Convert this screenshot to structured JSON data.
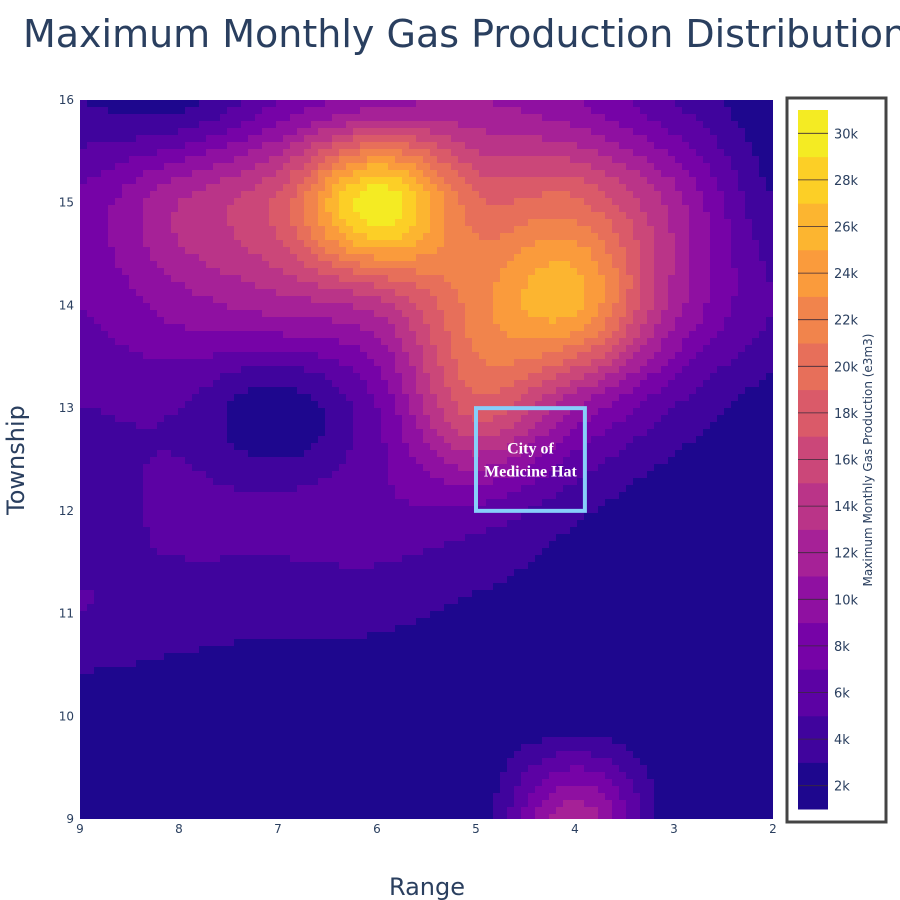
{
  "chart_data": {
    "type": "contour",
    "title": "Maximum Monthly Gas Production Distribution",
    "xlabel": "Range",
    "ylabel": "Township",
    "x_range": [
      9,
      2
    ],
    "y_range": [
      9,
      16
    ],
    "x_reversed": true,
    "x_ticks": [
      "9",
      "8",
      "7",
      "6",
      "5",
      "4",
      "3",
      "2"
    ],
    "y_ticks": [
      "9",
      "10",
      "11",
      "12",
      "13",
      "14",
      "15",
      "16"
    ],
    "colorbar": {
      "title": "Maximum Monthly Gas Production (e3m3)",
      "ticks": [
        "2k",
        "4k",
        "6k",
        "8k",
        "10k",
        "12k",
        "14k",
        "16k",
        "18k",
        "20k",
        "22k",
        "24k",
        "26k",
        "28k",
        "30k"
      ],
      "range": [
        1000,
        31000
      ],
      "level_step": 2000,
      "colorscale": [
        "#0d0887",
        "#46039f",
        "#7201a8",
        "#9c179e",
        "#bd3786",
        "#d8576b",
        "#ed7953",
        "#fb9f3a",
        "#fdca26",
        "#f0f921"
      ]
    },
    "grid_x": [
      9,
      8,
      7,
      6,
      5,
      4,
      3,
      2
    ],
    "grid_y": [
      9,
      10,
      11,
      12,
      13,
      14,
      15,
      16
    ],
    "z_rows": [
      [
        1500,
        1500,
        1500,
        1500,
        1500,
        12500,
        1500,
        1500
      ],
      [
        1500,
        1500,
        1500,
        1500,
        1500,
        1500,
        1500,
        1500
      ],
      [
        5000,
        4000,
        3500,
        3500,
        2500,
        2000,
        1500,
        1500
      ],
      [
        4000,
        5500,
        5500,
        6500,
        6500,
        3500,
        1500,
        1500
      ],
      [
        5000,
        5000,
        1500,
        7000,
        18000,
        11000,
        5000,
        2000
      ],
      [
        7000,
        10000,
        12000,
        14000,
        22000,
        25500,
        12000,
        5000
      ],
      [
        7500,
        13000,
        17500,
        30500,
        19500,
        19500,
        12000,
        3000
      ],
      [
        3000,
        2000,
        7000,
        10000,
        11000,
        9000,
        5000,
        1500
      ]
    ],
    "annotation": {
      "text_line1": "City of",
      "text_line2": "Medicine Hat",
      "box_x": [
        5,
        3.9
      ],
      "box_y": [
        12,
        13
      ],
      "box_color": "#87cefa"
    }
  }
}
